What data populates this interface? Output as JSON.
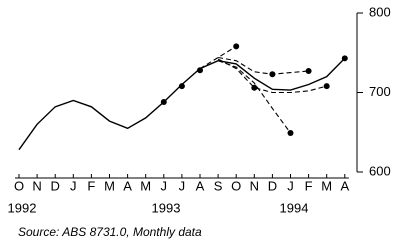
{
  "chart_data": {
    "type": "line",
    "categories": [
      "O",
      "N",
      "D",
      "J",
      "F",
      "M",
      "A",
      "M",
      "J",
      "J",
      "A",
      "S",
      "O",
      "N",
      "D",
      "J",
      "F",
      "M",
      "A"
    ],
    "year_labels": [
      "1992",
      "1993",
      "1994"
    ],
    "source": "Source: ABS 8731.0, Monthly data",
    "ylim": [
      600,
      800
    ],
    "yticks": [
      600,
      700,
      800
    ],
    "y_axis_side": "right",
    "series": [
      {
        "style": "solid",
        "color": "#000",
        "values": [
          628,
          660,
          682,
          690,
          682,
          664,
          655,
          668,
          688,
          710,
          730,
          740,
          736,
          718,
          704,
          703,
          710,
          720,
          743
        ]
      },
      {
        "style": "dashed",
        "color": "#000",
        "values": [
          null,
          null,
          null,
          null,
          null,
          null,
          null,
          null,
          null,
          null,
          730,
          744,
          758,
          null,
          null,
          null,
          null,
          null,
          null
        ]
      },
      {
        "style": "dashed",
        "color": "#000",
        "values": [
          null,
          null,
          null,
          null,
          null,
          null,
          null,
          null,
          null,
          null,
          null,
          744,
          740,
          726,
          723,
          725,
          727,
          null,
          null
        ]
      },
      {
        "style": "dashed",
        "color": "#000",
        "values": [
          null,
          null,
          null,
          null,
          null,
          null,
          null,
          null,
          null,
          null,
          null,
          742,
          730,
          706,
          700,
          700,
          702,
          708,
          null
        ]
      },
      {
        "style": "dashed",
        "color": "#000",
        "values": [
          null,
          null,
          null,
          null,
          null,
          null,
          null,
          null,
          null,
          null,
          null,
          740,
          732,
          712,
          680,
          649,
          null,
          null,
          null
        ]
      },
      {
        "style": "dots",
        "color": "#000",
        "values": [
          null,
          null,
          null,
          null,
          null,
          null,
          null,
          null,
          688,
          708,
          728,
          null,
          758,
          706,
          723,
          649,
          727,
          708,
          743
        ]
      }
    ]
  }
}
